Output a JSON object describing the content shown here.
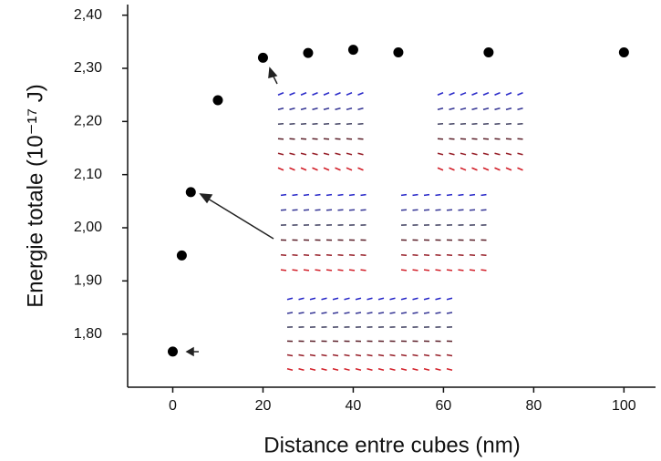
{
  "chart_data": {
    "type": "scatter",
    "x_label": "Distance entre cubes (nm)",
    "y_label": "Energie totale (10⁻¹⁷ J)",
    "x": [
      0,
      2,
      4,
      10,
      20,
      30,
      40,
      50,
      70,
      100
    ],
    "values": [
      1.767,
      1.948,
      2.067,
      2.24,
      2.32,
      2.329,
      2.335,
      2.33,
      2.33,
      2.33
    ],
    "color": "#000000",
    "xlim": [
      -10,
      107
    ],
    "xticks": [
      0,
      20,
      40,
      60,
      80,
      100
    ],
    "ylim": [
      1.7,
      2.42
    ],
    "yticks": [
      {
        "value": 1.8,
        "label": "1,80"
      },
      {
        "value": 1.9,
        "label": "1,90"
      },
      {
        "value": 2.0,
        "label": "2,00"
      },
      {
        "value": 2.1,
        "label": "2,10"
      },
      {
        "value": 2.2,
        "label": "2,20"
      },
      {
        "value": 2.3,
        "label": "2,30"
      },
      {
        "value": 2.4,
        "label": "2,40"
      }
    ]
  }
}
